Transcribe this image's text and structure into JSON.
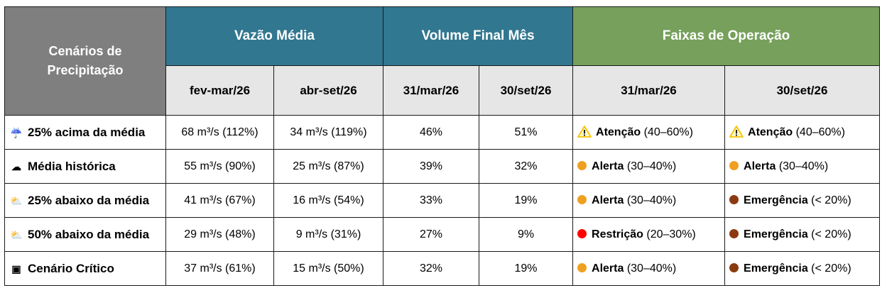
{
  "header": {
    "scenarios": "Cenários de\nPrecipitação",
    "vazao": "Vazão Média",
    "volume": "Volume Final Mês",
    "faixas": "Faixas de Operação",
    "sub": [
      "fev-mar/26",
      "abr-set/26",
      "31/mar/26",
      "30/set/26",
      "31/mar/26",
      "30/set/26"
    ]
  },
  "colors": {
    "atencao": "#f5c400",
    "alerta": "#f0a020",
    "restricao": "#ff0000",
    "emergencia": "#8b3a0f"
  },
  "rows": [
    {
      "icon": "rain-cloud-icon",
      "glyph": "☔",
      "scenario": "25% acima da média",
      "vazao1": "68 m³/s (112%)",
      "vazao2": "34 m³/s (119%)",
      "vol1": "46%",
      "vol2": "51%",
      "f1": {
        "kind": "atencao",
        "name": "Atenção",
        "range": " (40–60%)"
      },
      "f2": {
        "kind": "atencao",
        "name": "Atenção",
        "range": " (40–60%)"
      }
    },
    {
      "icon": "cloud-icon",
      "glyph": "☁",
      "scenario": "Média histórica",
      "vazao1": "55 m³/s (90%)",
      "vazao2": "25 m³/s (87%)",
      "vol1": "39%",
      "vol2": "32%",
      "f1": {
        "kind": "alerta",
        "name": "Alerta",
        "range": " (30–40%)"
      },
      "f2": {
        "kind": "alerta",
        "name": "Alerta",
        "range": " (30–40%)"
      }
    },
    {
      "icon": "partly-cloudy-icon",
      "glyph": "⛅",
      "scenario": "25% abaixo da média",
      "vazao1": "41 m³/s (67%)",
      "vazao2": "16 m³/s (54%)",
      "vol1": "33%",
      "vol2": "19%",
      "f1": {
        "kind": "alerta",
        "name": "Alerta",
        "range": " (30–40%)"
      },
      "f2": {
        "kind": "emergencia",
        "name": "Emergência",
        "range": " (< 20%)"
      }
    },
    {
      "icon": "sun-behind-cloud-icon",
      "glyph": "⛅",
      "scenario": "50% abaixo da média",
      "vazao1": "29 m³/s (48%)",
      "vazao2": "9 m³/s (31%)",
      "vol1": "27%",
      "vol2": "9%",
      "f1": {
        "kind": "restricao",
        "name": "Restrição",
        "range": " (20–30%)"
      },
      "f2": {
        "kind": "emergencia",
        "name": "Emergência",
        "range": " (< 20%)"
      }
    },
    {
      "icon": "monitor-icon",
      "glyph": "▣",
      "scenario": "Cenário Crítico",
      "vazao1": "37 m³/s (61%)",
      "vazao2": "15 m³/s (50%)",
      "vol1": "32%",
      "vol2": "19%",
      "f1": {
        "kind": "alerta",
        "name": "Alerta",
        "range": " (30–40%)"
      },
      "f2": {
        "kind": "emergencia",
        "name": "Emergência",
        "range": " (< 20%)"
      }
    }
  ]
}
